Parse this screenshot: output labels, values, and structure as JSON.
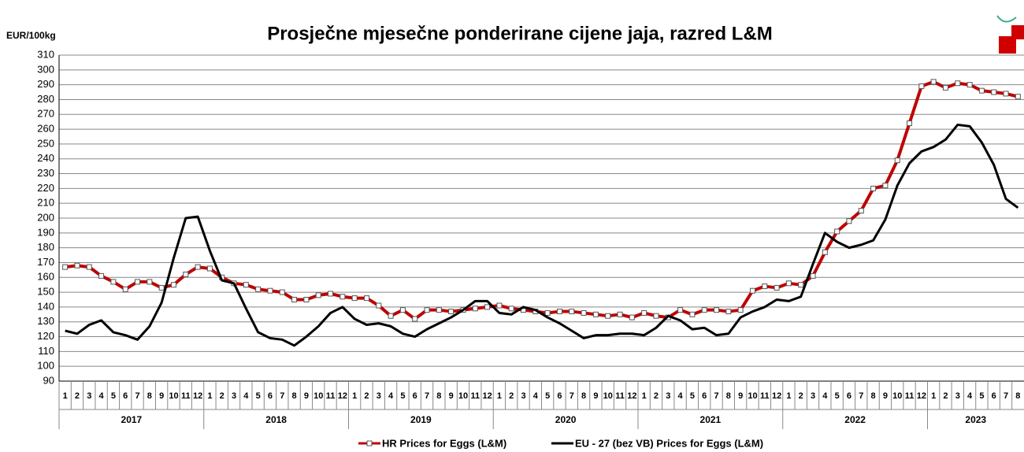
{
  "chart_data": {
    "type": "line",
    "title": "Prosječne mjesečne ponderirane cijene jaja, razred L&M",
    "y_label": "EUR/100kg",
    "categories": [
      "1",
      "2",
      "3",
      "4",
      "5",
      "6",
      "7",
      "8",
      "9",
      "10",
      "11",
      "12",
      "1",
      "2",
      "3",
      "4",
      "5",
      "6",
      "7",
      "8",
      "9",
      "10",
      "11",
      "12",
      "1",
      "2",
      "3",
      "4",
      "5",
      "6",
      "7",
      "8",
      "9",
      "10",
      "11",
      "12",
      "1",
      "2",
      "3",
      "4",
      "5",
      "6",
      "7",
      "8",
      "9",
      "10",
      "11",
      "12",
      "1",
      "2",
      "3",
      "4",
      "5",
      "6",
      "7",
      "8",
      "9",
      "10",
      "11",
      "12",
      "1",
      "2",
      "3",
      "4",
      "5",
      "6",
      "7",
      "8",
      "9",
      "10",
      "11",
      "12",
      "1",
      "2",
      "3",
      "4",
      "5",
      "6",
      "7",
      "8"
    ],
    "years": [
      "2017",
      "2018",
      "2019",
      "2020",
      "2021",
      "2022",
      "2023"
    ],
    "series": [
      {
        "name": "HR  Prices for Eggs (L&M)",
        "color": "#c00000",
        "values": [
          167,
          168,
          167,
          161,
          157,
          152,
          157,
          157,
          153,
          155,
          162,
          167,
          166,
          160,
          156,
          155,
          152,
          151,
          150,
          145,
          145,
          148,
          149,
          147,
          146,
          146,
          141,
          134,
          138,
          132,
          138,
          138,
          137,
          138,
          139,
          140,
          141,
          139,
          138,
          137,
          136,
          137,
          137,
          136,
          135,
          134,
          135,
          133,
          136,
          134,
          133,
          138,
          135,
          138,
          138,
          137,
          138,
          151,
          154,
          153,
          156,
          155,
          161,
          177,
          191,
          198,
          205,
          220,
          222,
          239,
          264,
          289,
          292,
          288,
          291,
          290,
          286,
          285,
          284,
          282
        ]
      },
      {
        "name": "EU - 27 (bez VB)  Prices for Eggs (L&M)",
        "color": "#000000",
        "values": [
          124,
          122,
          128,
          131,
          123,
          121,
          118,
          127,
          143,
          173,
          200,
          201,
          178,
          158,
          156,
          139,
          123,
          119,
          118,
          114,
          120,
          127,
          136,
          140,
          132,
          128,
          129,
          127,
          122,
          120,
          125,
          129,
          133,
          138,
          144,
          144,
          136,
          135,
          140,
          138,
          133,
          129,
          124,
          119,
          121,
          121,
          122,
          122,
          121,
          126,
          134,
          131,
          125,
          126,
          121,
          122,
          133,
          137,
          140,
          145,
          144,
          147,
          169,
          190,
          184,
          180,
          182,
          185,
          199,
          222,
          237,
          245,
          248,
          253,
          263,
          262,
          251,
          236,
          213,
          207
        ]
      }
    ],
    "ylim": [
      90,
      310
    ],
    "yticks": [
      90,
      100,
      110,
      120,
      130,
      140,
      150,
      160,
      170,
      180,
      190,
      200,
      210,
      220,
      230,
      240,
      250,
      260,
      270,
      280,
      290,
      300,
      310
    ],
    "grid": true
  }
}
